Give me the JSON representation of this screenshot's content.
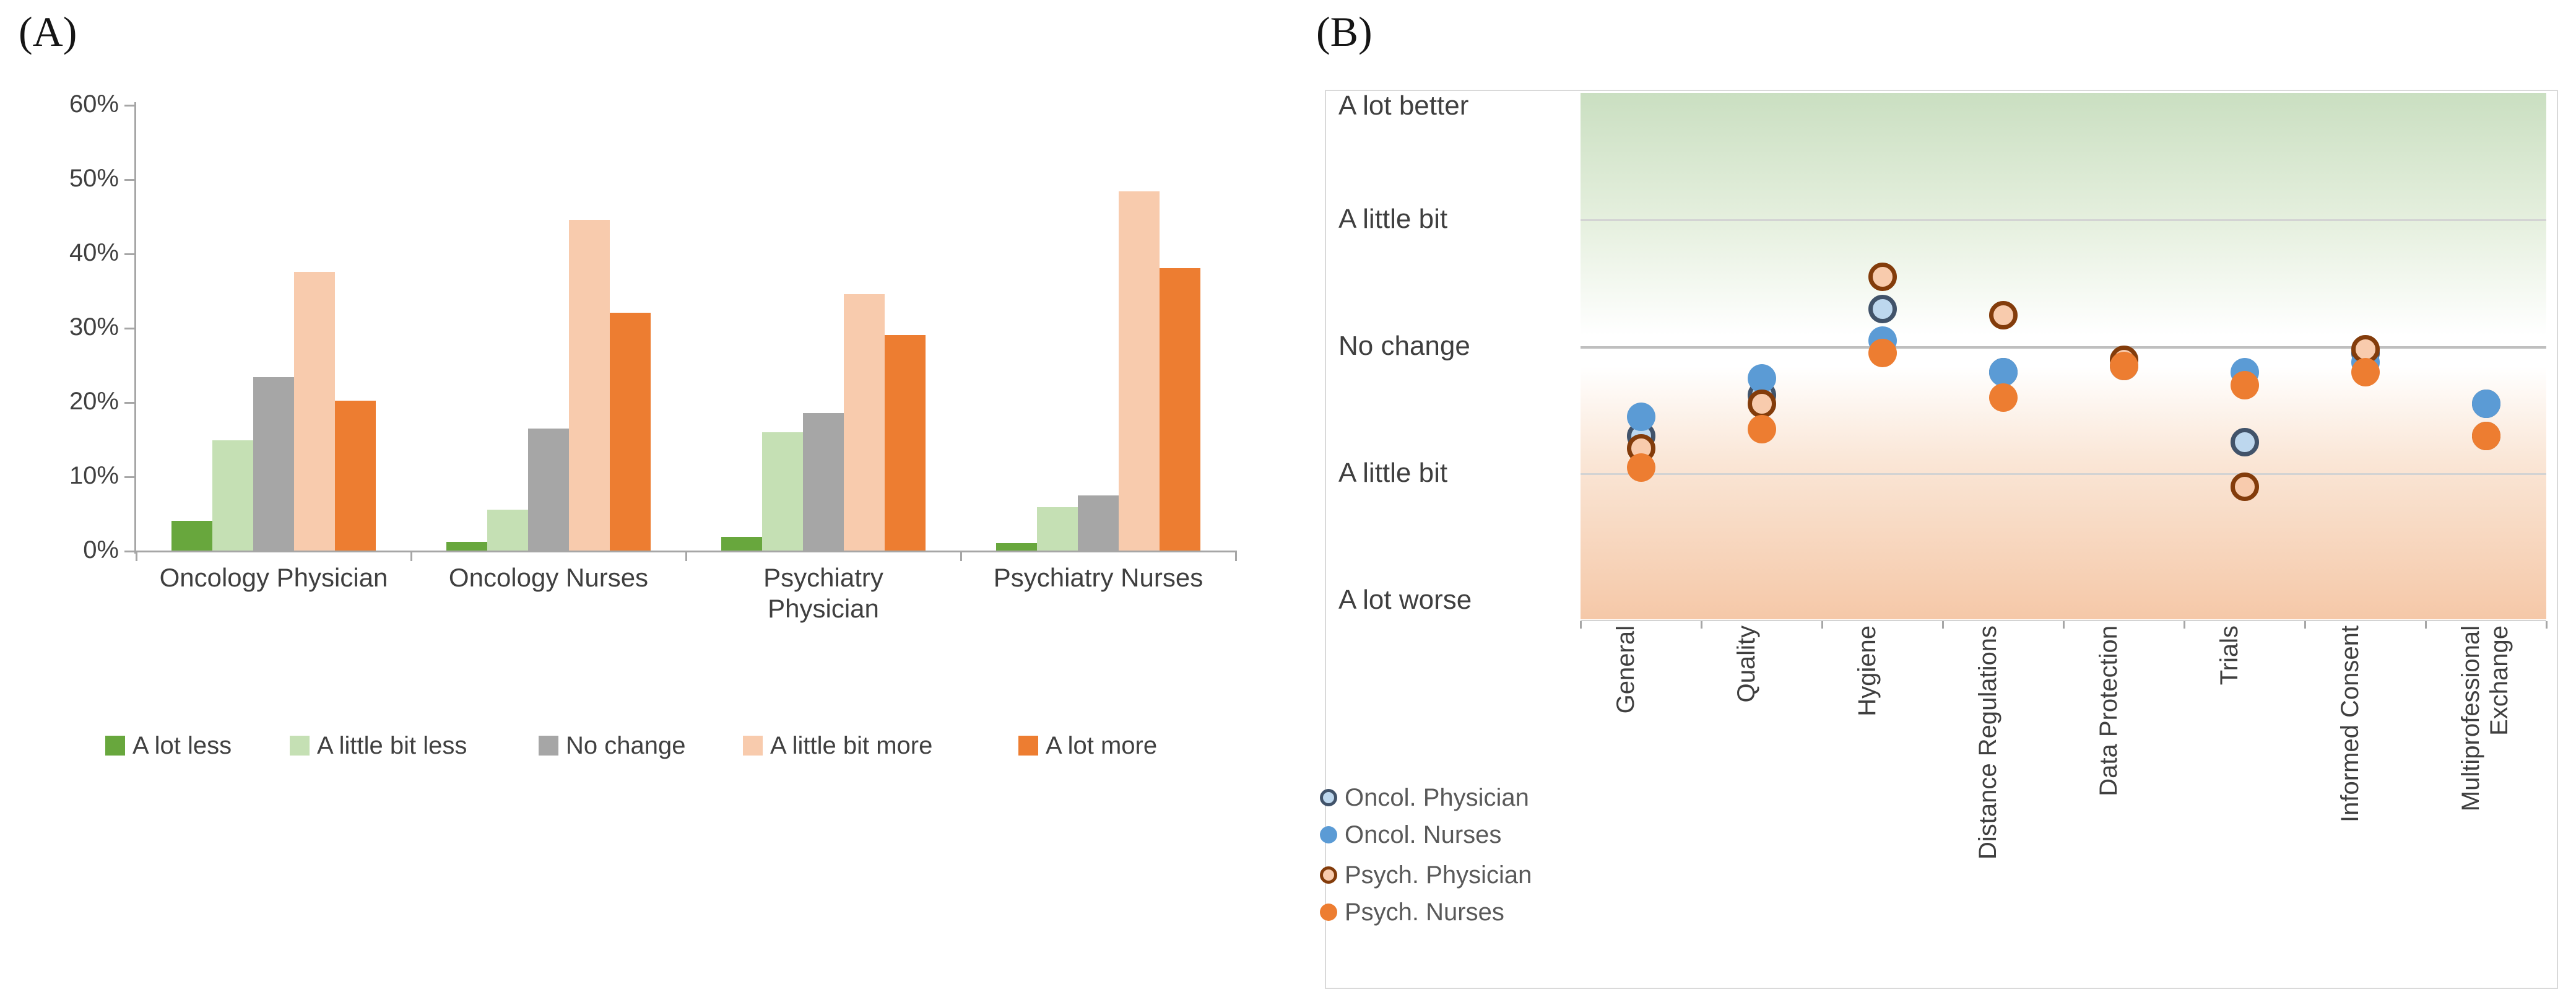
{
  "panelA": {
    "label": "(A)",
    "chart_data": {
      "type": "bar",
      "categories": [
        "Oncology Physician",
        "Oncology Nurses",
        "Psychiatry\nPhysician",
        "Psychiatry Nurses"
      ],
      "series": [
        {
          "name": "A lot less",
          "color": "#68a73d",
          "values": [
            4.0,
            1.2,
            1.8,
            1.0
          ]
        },
        {
          "name": "A little bit less",
          "color": "#c5e0b4",
          "values": [
            14.8,
            5.5,
            15.9,
            5.8
          ]
        },
        {
          "name": "No change",
          "color": "#a6a6a6",
          "values": [
            23.3,
            16.4,
            18.5,
            7.4
          ]
        },
        {
          "name": "A little bit more",
          "color": "#f8cbad",
          "values": [
            37.5,
            44.5,
            34.5,
            48.3
          ]
        },
        {
          "name": "A lot more",
          "color": "#ed7d31",
          "values": [
            20.2,
            32.0,
            29.0,
            38.0
          ]
        }
      ],
      "y_ticks": [
        "0%",
        "10%",
        "20%",
        "30%",
        "40%",
        "50%",
        "60%"
      ],
      "ylim": [
        0,
        60
      ],
      "xlabel": "",
      "ylabel": "",
      "grid": false,
      "legend_position": "bottom"
    }
  },
  "panelB": {
    "label": "(B)",
    "chart_data": {
      "type": "scatter",
      "categories": [
        "General",
        "Quality",
        "Hygiene",
        "Distance Regulations",
        "Data Protection",
        "Trials",
        "Informed Consent",
        "Multiprofessional\nExchange"
      ],
      "y_axis_labels": [
        {
          "label": "A lot better",
          "value": 2
        },
        {
          "label": "A little bit",
          "value": 1
        },
        {
          "label": "No change",
          "value": 0
        },
        {
          "label": "A little bit",
          "value": -1
        },
        {
          "label": "A lot worse",
          "value": -2
        }
      ],
      "ylim": [
        -2,
        2
      ],
      "gridline_values": [
        1,
        0,
        -1
      ],
      "series": [
        {
          "name": "Oncol. Physician",
          "marker": "open",
          "fill": "#bdd7ee",
          "outline": "#41536a",
          "values": [
            -0.7,
            -0.38,
            0.3,
            -0.2,
            -0.15,
            -0.75,
            -0.05,
            -0.45
          ]
        },
        {
          "name": "Oncol. Nurses",
          "marker": "filled",
          "fill": "#5b9bd5",
          "outline": "#5b9bd5",
          "values": [
            -0.55,
            -0.25,
            0.05,
            -0.2,
            -0.15,
            -0.2,
            -0.12,
            -0.45
          ]
        },
        {
          "name": "Psych. Physician",
          "marker": "open",
          "fill": "#f8cbad",
          "outline": "#833c0b",
          "values": [
            -0.8,
            -0.45,
            0.55,
            0.25,
            -0.1,
            -1.1,
            -0.02,
            -0.7
          ]
        },
        {
          "name": "Psych. Nurses",
          "marker": "filled",
          "fill": "#ed7d31",
          "outline": "#ed7d31",
          "values": [
            -0.95,
            -0.65,
            -0.05,
            -0.4,
            -0.15,
            -0.3,
            -0.2,
            -0.7
          ]
        }
      ],
      "legend_position": "bottom-left",
      "background_gradient": {
        "top": "#cadfc1",
        "middle": "#ffffff",
        "bottom": "#f5c8a8"
      }
    }
  },
  "colors": {
    "axis": "#a6a6a6",
    "tick_text": "#404040",
    "category_text": "#3f3f3f",
    "legend_text_a": "#404040",
    "legend_text_b": "#595959",
    "panel_border": "#d9d9d9",
    "gridline": "#d3d3d3",
    "gridline_zero": "#bfbfbf"
  }
}
